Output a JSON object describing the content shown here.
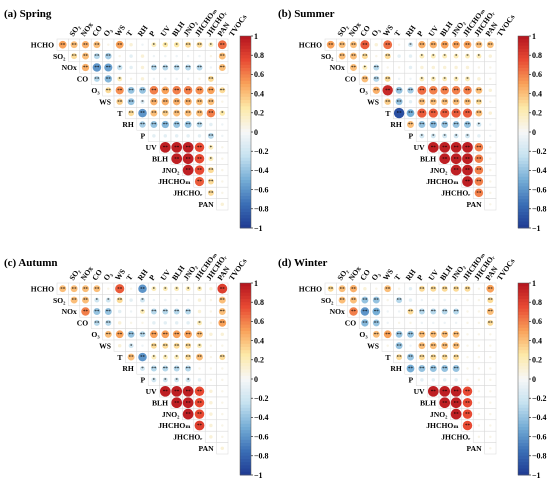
{
  "figure": {
    "variables": [
      "HCHO",
      "SO2",
      "NOx",
      "CO",
      "O3",
      "WS",
      "T",
      "RH",
      "P",
      "UV",
      "BLH",
      "JNO2",
      "JHCHOM",
      "JHCHOR",
      "PAN",
      "TVOCs"
    ],
    "row_labels": [
      "HCHO",
      "SO₂",
      "NOx",
      "CO",
      "O₃",
      "WS",
      "T",
      "RH",
      "P",
      "UV",
      "BLH",
      "JNO₂",
      "JHCHOₘ",
      "JHCHOᵣ",
      "PAN"
    ],
    "column_labels": [
      "SO₂",
      "NOx",
      "CO",
      "O₃",
      "WS",
      "T",
      "RH",
      "P",
      "UV",
      "BLH",
      "JNO₂",
      "JHCHOₘ",
      "JHCHOᵣ",
      "PAN",
      "TVOCs"
    ],
    "colorbar": {
      "ticks": [
        "1",
        "0.8",
        "0.6",
        "0.4",
        "0.2",
        "0",
        "−0.2",
        "−0.4",
        "−0.6",
        "−0.8",
        "−1"
      ],
      "range": [
        -1,
        1
      ],
      "colors": [
        "#1f3a93",
        "#3b6fb6",
        "#76aed6",
        "#c6e2f0",
        "#f7f7f7",
        "#fde9a8",
        "#f9a25a",
        "#e84a33",
        "#b3141f"
      ]
    }
  },
  "chart_data": [
    {
      "type": "heatmap",
      "title": "(a) Spring",
      "variables": [
        "HCHO",
        "SO2",
        "NOx",
        "CO",
        "O3",
        "WS",
        "T",
        "RH",
        "P",
        "UV",
        "BLH",
        "JNO2",
        "JHCHOM",
        "JHCHOR",
        "PAN",
        "TVOCs"
      ],
      "matrix": [
        [
          0.5,
          0.4,
          0.45,
          0.4,
          0.05,
          0.5,
          0.1,
          -0.05,
          0.2,
          0.25,
          0.25,
          0.3,
          0.3,
          0.2,
          0.65
        ],
        [
          0.3,
          0.4,
          -0.3,
          -0.35,
          0.05,
          -0.1,
          0.1,
          -0.05,
          -0.05,
          -0.05,
          -0.05,
          -0.05,
          0.05,
          0.4
        ],
        [
          0.45,
          -0.6,
          -0.55,
          -0.25,
          -0.1,
          0.1,
          -0.3,
          -0.3,
          -0.3,
          -0.3,
          -0.3,
          -0.05,
          0.4
        ],
        [
          -0.3,
          -0.45,
          0.2,
          0.05,
          0.1,
          -0.05,
          -0.05,
          -0.05,
          -0.05,
          0.05,
          0.3
        ],
        [
          0.3,
          0.55,
          -0.4,
          -0.4,
          0.6,
          0.5,
          0.6,
          0.6,
          0.55,
          0.5,
          0.3
        ],
        [
          0.35,
          -0.4,
          -0.15,
          0.45,
          0.45,
          0.45,
          0.45,
          0.4,
          0.4,
          0.05
        ],
        [
          0.3,
          -0.6,
          0.4,
          0.35,
          0.4,
          0.4,
          0.4,
          0.6,
          0.25
        ],
        [
          -0.35,
          -0.4,
          -0.45,
          -0.4,
          -0.4,
          -0.3,
          -0.1,
          -0.05
        ],
        [
          -0.1,
          -0.1,
          -0.1,
          -0.1,
          -0.1,
          -0.3,
          -0.05
        ],
        [
          0.95,
          0.95,
          0.95,
          0.75,
          0.2,
          0.05
        ],
        [
          0.95,
          0.95,
          0.75,
          0.2,
          0.05
        ],
        [
          0.95,
          0.75,
          0.3,
          0.05
        ],
        [
          0.7,
          0.3,
          0.05
        ],
        [
          0.3,
          0.05
        ],
        [
          0.1
        ]
      ],
      "colorbar_range": [
        -1,
        1
      ]
    },
    {
      "type": "heatmap",
      "title": "(b) Summer",
      "variables": [
        "HCHO",
        "SO2",
        "NOx",
        "CO",
        "O3",
        "WS",
        "T",
        "RH",
        "P",
        "UV",
        "BLH",
        "JNO2",
        "JHCHOM",
        "JHCHOR",
        "PAN",
        "TVOCs"
      ],
      "matrix": [
        [
          0.5,
          0.4,
          0.4,
          0.7,
          0.1,
          0.65,
          0.05,
          -0.2,
          0.45,
          0.45,
          0.5,
          0.5,
          0.5,
          0.4,
          0.4
        ],
        [
          0.4,
          0.4,
          0.3,
          0.05,
          0.3,
          -0.1,
          -0.1,
          0.2,
          0.2,
          0.2,
          0.2,
          0.2,
          0.2,
          0.1
        ],
        [
          0.4,
          0.2,
          -0.3,
          0.05,
          0.05,
          -0.1,
          0.1,
          0.1,
          0.1,
          0.1,
          0.1,
          0.05,
          0.05
        ],
        [
          0.4,
          -0.3,
          0.3,
          -0.05,
          -0.05,
          0.2,
          0.2,
          0.2,
          0.2,
          0.2,
          0.1,
          0.05
        ],
        [
          0.45,
          0.9,
          -0.4,
          -0.35,
          0.65,
          0.6,
          0.6,
          0.6,
          0.6,
          0.4,
          0.1
        ],
        [
          0.35,
          -0.4,
          -0.1,
          0.4,
          0.4,
          0.4,
          0.4,
          0.4,
          0.3,
          0.05
        ],
        [
          -0.9,
          -0.5,
          0.7,
          0.7,
          0.7,
          0.7,
          0.7,
          0.4,
          0.1
        ],
        [
          0.4,
          -0.4,
          -0.45,
          -0.4,
          -0.4,
          -0.4,
          -0.2,
          -0.05
        ],
        [
          -0.2,
          -0.2,
          -0.2,
          -0.2,
          -0.2,
          -0.1,
          -0.05
        ],
        [
          0.95,
          0.95,
          0.95,
          0.95,
          0.6,
          0.05
        ],
        [
          0.95,
          0.95,
          0.95,
          0.6,
          0.05
        ],
        [
          0.95,
          0.95,
          0.6,
          0.05
        ],
        [
          0.95,
          0.6,
          0.05
        ],
        [
          0.6,
          0.05
        ],
        [
          0.05
        ]
      ],
      "colorbar_range": [
        -1,
        1
      ]
    },
    {
      "type": "heatmap",
      "title": "(c) Autumn",
      "variables": [
        "HCHO",
        "SO2",
        "NOx",
        "CO",
        "O3",
        "WS",
        "T",
        "RH",
        "P",
        "UV",
        "BLH",
        "JNO2",
        "JHCHOM",
        "JHCHOR",
        "PAN",
        "TVOCs"
      ],
      "matrix": [
        [
          0.4,
          0.4,
          0.4,
          0.4,
          0.05,
          0.7,
          0.05,
          -0.6,
          0.2,
          0.2,
          0.2,
          0.2,
          0.2,
          0.1,
          0.8
        ],
        [
          0.4,
          0.4,
          -0.2,
          -0.2,
          0.3,
          -0.1,
          -0.2,
          -0.05,
          -0.05,
          -0.05,
          -0.05,
          0.1,
          0.05,
          0.4
        ],
        [
          0.6,
          -0.4,
          -0.4,
          -0.1,
          -0.05,
          0.2,
          -0.3,
          -0.3,
          -0.3,
          -0.3,
          0.1,
          0.05,
          0.4
        ],
        [
          -0.3,
          -0.3,
          0.1,
          0.05,
          0.05,
          -0.1,
          -0.1,
          -0.1,
          -0.1,
          0.2,
          0.05,
          0.5
        ],
        [
          0.4,
          0.5,
          -0.4,
          -0.3,
          0.5,
          0.5,
          0.5,
          0.5,
          0.4,
          0.1,
          0.1
        ],
        [
          0.1,
          -0.2,
          -0.05,
          0.3,
          0.3,
          0.3,
          0.3,
          0.2,
          0.05,
          0.05
        ],
        [
          0.4,
          -0.6,
          0.2,
          0.2,
          0.2,
          0.3,
          0.4,
          0.05,
          0.3
        ],
        [
          -0.2,
          -0.3,
          -0.3,
          -0.3,
          -0.3,
          0.05,
          0.05,
          0.05
        ],
        [
          -0.2,
          -0.2,
          -0.2,
          -0.2,
          -0.1,
          0.05,
          0.05
        ],
        [
          0.95,
          0.95,
          0.95,
          0.75,
          0.1,
          0.05
        ],
        [
          0.95,
          0.95,
          0.75,
          0.1,
          0.05
        ],
        [
          0.95,
          0.75,
          0.1,
          0.05
        ],
        [
          0.8,
          0.1,
          0.05
        ],
        [
          0.1,
          0.05
        ],
        [
          0.1
        ]
      ],
      "colorbar_range": [
        -1,
        1
      ]
    },
    {
      "type": "heatmap",
      "title": "(d) Winter",
      "variables": [
        "HCHO",
        "SO2",
        "NOx",
        "CO",
        "O3",
        "WS",
        "T",
        "RH",
        "P",
        "UV",
        "BLH",
        "JNO2",
        "JHCHOM",
        "JHCHOR",
        "PAN",
        "TVOCs"
      ],
      "matrix": [
        [
          0.3,
          0.4,
          0.45,
          0.1,
          0.05,
          0.4,
          0.05,
          -0.1,
          0.3,
          0.3,
          0.3,
          0.3,
          0.3,
          0.05,
          0.5
        ],
        [
          0.4,
          0.4,
          -0.4,
          -0.4,
          0.05,
          -0.3,
          -0.1,
          -0.05,
          -0.05,
          -0.05,
          -0.05,
          0.05,
          0.05,
          0.3
        ],
        [
          0.6,
          -0.6,
          -0.5,
          -0.05,
          -0.05,
          0.3,
          -0.3,
          -0.3,
          -0.3,
          -0.3,
          0.05,
          0.05,
          0.4
        ],
        [
          -0.45,
          -0.4,
          -0.05,
          0.05,
          0.05,
          -0.05,
          -0.05,
          -0.05,
          -0.05,
          0.05,
          0.05,
          0.3
        ],
        [
          0.4,
          0.5,
          -0.4,
          -0.4,
          0.4,
          0.4,
          0.4,
          0.4,
          0.05,
          0.05,
          0.05
        ],
        [
          0.05,
          -0.4,
          -0.05,
          0.4,
          0.4,
          0.4,
          0.4,
          0.05,
          0.05,
          0.05
        ],
        [
          0.3,
          -0.4,
          0.3,
          0.3,
          0.3,
          0.3,
          0.05,
          0.05,
          0.05
        ],
        [
          -0.5,
          -0.4,
          -0.4,
          -0.4,
          -0.4,
          0.05,
          0.05,
          0.05
        ],
        [
          -0.1,
          -0.1,
          -0.1,
          -0.1,
          0.05,
          0.05,
          0.05
        ],
        [
          0.95,
          0.95,
          0.95,
          0.75,
          0.05,
          0.05
        ],
        [
          0.95,
          0.95,
          0.75,
          0.05,
          0.05
        ],
        [
          0.95,
          0.75,
          0.05,
          0.05
        ],
        [
          0.75,
          0.05,
          0.05
        ],
        [
          0.05,
          0.05
        ],
        [
          0.05
        ]
      ],
      "colorbar_range": [
        -1,
        1
      ]
    }
  ]
}
